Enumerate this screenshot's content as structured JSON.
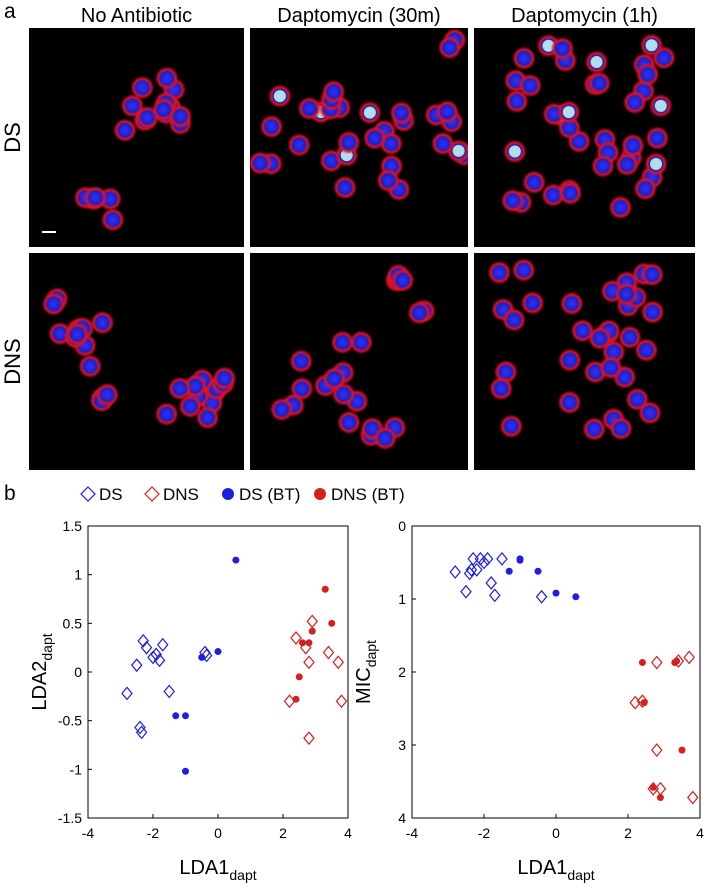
{
  "panel_a": {
    "letter": "a",
    "columns": [
      "No Antibiotic",
      "Daptomycin (30m)",
      "Daptomycin (1h)"
    ],
    "rows": [
      "DS",
      "DNS"
    ]
  },
  "panel_b": {
    "letter": "b"
  },
  "chart_data": [
    {
      "type": "scatter",
      "xlabel": {
        "text": "LDA1",
        "sub": "dapt"
      },
      "ylabel": {
        "text": "LDA2",
        "sub": "dapt"
      },
      "xlim": [
        -4,
        4
      ],
      "ylim": [
        -1.5,
        1.5
      ],
      "xticks": [
        -4,
        -2,
        0,
        2,
        4
      ],
      "yticks": [
        -1.5,
        -1,
        -0.5,
        0,
        0.5,
        1,
        1.5
      ],
      "series": [
        {
          "name": "DS",
          "color": "#1f1fe0",
          "marker": "diamond",
          "x": [
            -2.8,
            -2.5,
            -2.3,
            -2.2,
            -2.0,
            -1.9,
            -1.8,
            -1.7,
            -2.4,
            -2.35,
            -1.5,
            -0.4,
            -0.35
          ],
          "values": [
            -0.22,
            0.07,
            0.32,
            0.25,
            0.15,
            0.18,
            0.12,
            0.28,
            -0.57,
            -0.62,
            -0.2,
            0.2,
            0.17
          ]
        },
        {
          "name": "DNS",
          "color": "#d42020",
          "marker": "diamond",
          "x": [
            2.2,
            2.4,
            2.8,
            2.8,
            2.9,
            3.4,
            3.7,
            3.8,
            2.7
          ],
          "values": [
            -0.3,
            0.35,
            0.1,
            -0.68,
            0.52,
            0.2,
            0.1,
            -0.3,
            0.25
          ]
        },
        {
          "name": "DS (BT)",
          "color": "#1f1fe0",
          "marker": "dot",
          "x": [
            0.55,
            0.0,
            -0.5,
            -1.0,
            -1.3,
            -1.0
          ],
          "values": [
            1.15,
            0.21,
            0.15,
            -0.45,
            -0.45,
            -1.02
          ]
        },
        {
          "name": "DNS (BT)",
          "color": "#d42020",
          "marker": "dot",
          "x": [
            2.4,
            2.5,
            2.6,
            2.9,
            3.3,
            3.5,
            2.8
          ],
          "values": [
            -0.28,
            -0.05,
            0.3,
            0.42,
            0.85,
            0.5,
            0.3
          ]
        }
      ]
    },
    {
      "type": "scatter",
      "xlabel": {
        "text": "LDA1",
        "sub": "dapt"
      },
      "ylabel": {
        "text": "MIC",
        "sub": "dapt"
      },
      "xlim": [
        -4,
        4
      ],
      "ylim": [
        4,
        0
      ],
      "xticks": [
        -4,
        -2,
        0,
        2,
        4
      ],
      "yticks": [
        0,
        1,
        2,
        3,
        4
      ],
      "series": [
        {
          "color": "#1f1fe0",
          "marker": "diamond",
          "x": [
            -2.8,
            -2.5,
            -2.3,
            -2.2,
            -2.0,
            -1.9,
            -1.8,
            -1.7,
            -2.4,
            -2.35,
            -1.5,
            -0.4,
            -2.1
          ],
          "values": [
            0.63,
            0.9,
            0.45,
            0.6,
            0.5,
            0.45,
            0.78,
            0.95,
            0.65,
            0.6,
            0.45,
            0.97,
            0.45
          ]
        },
        {
          "color": "#d42020",
          "marker": "diamond",
          "x": [
            2.2,
            2.4,
            2.8,
            2.8,
            2.9,
            3.4,
            3.7,
            3.8,
            2.7
          ],
          "values": [
            2.42,
            2.4,
            1.87,
            3.07,
            3.6,
            1.85,
            1.8,
            3.72,
            3.6
          ]
        },
        {
          "color": "#1f1fe0",
          "marker": "dot",
          "x": [
            0.55,
            0.0,
            -0.5,
            -1.0,
            -1.3,
            -1.0
          ],
          "values": [
            0.97,
            0.92,
            0.62,
            0.47,
            0.62,
            0.45
          ]
        },
        {
          "color": "#d42020",
          "marker": "dot",
          "x": [
            2.4,
            2.45,
            3.3,
            2.9,
            3.35,
            3.5,
            2.7
          ],
          "values": [
            1.87,
            2.42,
            1.87,
            3.72,
            1.85,
            3.07,
            3.58
          ]
        }
      ]
    }
  ]
}
